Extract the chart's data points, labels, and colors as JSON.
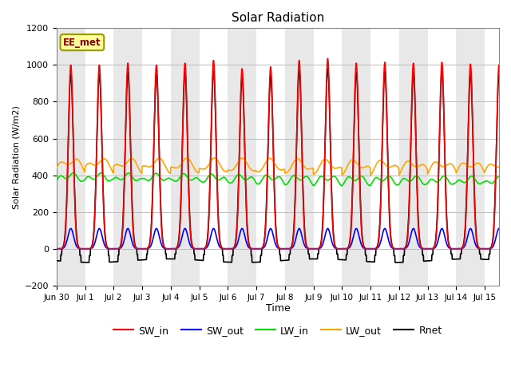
{
  "title": "Solar Radiation",
  "xlabel": "Time",
  "ylabel": "Solar Radiation (W/m2)",
  "ylim": [
    -200,
    1200
  ],
  "yticks": [
    -200,
    0,
    200,
    400,
    600,
    800,
    1000,
    1200
  ],
  "site_label": "EE_met",
  "site_label_color": "#8B0000",
  "site_label_bg": "#FFFF99",
  "site_label_border": "#999900",
  "background_color": "#ffffff",
  "plot_bg_color": "#e8e8e8",
  "white_band_color": "#ffffff",
  "series": {
    "SW_in": {
      "color": "#ff0000",
      "lw": 1.2
    },
    "SW_out": {
      "color": "#0000ff",
      "lw": 1.2
    },
    "LW_in": {
      "color": "#00dd00",
      "lw": 1.2
    },
    "LW_out": {
      "color": "#ffa500",
      "lw": 1.2
    },
    "Rnet": {
      "color": "#000000",
      "lw": 1.2
    }
  },
  "x_tick_labels": [
    "Jun 30",
    "Jul 1",
    "Jul 2",
    "Jul 3",
    "Jul 4",
    "Jul 5",
    "Jul 6",
    "Jul 7",
    "Jul 8",
    "Jul 9",
    "Jul 10",
    "Jul 11",
    "Jul 12",
    "Jul 13",
    "Jul 14",
    "Jul 15"
  ],
  "SW_in_peak": 1000,
  "SW_out_peak": 110,
  "LW_in_base": 370,
  "LW_out_base": 430,
  "Rnet_peak": 950,
  "Rnet_night": -65,
  "dt": 0.01
}
